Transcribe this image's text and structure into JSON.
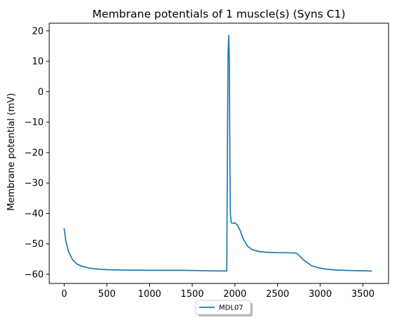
{
  "chart_data": {
    "type": "line",
    "title": "Membrane potentials of 1 muscle(s) (Syns C1)",
    "xlabel": "",
    "ylabel": "Membrane potential (mV)",
    "xlim": [
      -175,
      3800
    ],
    "ylim": [
      -63,
      22.5
    ],
    "xticks": [
      0,
      500,
      1000,
      1500,
      2000,
      2500,
      3000,
      3500
    ],
    "yticks": [
      20,
      10,
      0,
      -10,
      -20,
      -30,
      -40,
      -50,
      -60
    ],
    "ytick_labels": [
      "20",
      "10",
      "0",
      "−10",
      "−20",
      "−30",
      "−40",
      "−50",
      "−60"
    ],
    "grid": false,
    "legend_position": "bottom-center",
    "series": [
      {
        "name": "MDL07",
        "color": "#1f77b4",
        "x": [
          0,
          20,
          50,
          100,
          150,
          200,
          300,
          400,
          500,
          700,
          1000,
          1400,
          1600,
          1800,
          1905,
          1912,
          1920,
          1928,
          1935,
          1938,
          1942,
          1947,
          1955,
          1965,
          1980,
          2000,
          2030,
          2060,
          2100,
          2150,
          2200,
          2300,
          2400,
          2500,
          2600,
          2700,
          2730,
          2800,
          2900,
          3000,
          3100,
          3200,
          3400,
          3600
        ],
        "y": [
          -45,
          -49,
          -52.5,
          -55.3,
          -56.6,
          -57.3,
          -58.0,
          -58.3,
          -58.5,
          -58.6,
          -58.7,
          -58.7,
          -58.8,
          -58.9,
          -58.9,
          -20,
          12,
          18.5,
          10,
          -5,
          -25,
          -40,
          -42.8,
          -43.3,
          -43.2,
          -43.1,
          -43.8,
          -45.5,
          -48.5,
          -50.8,
          -51.9,
          -52.6,
          -52.8,
          -52.9,
          -52.9,
          -53.0,
          -53.2,
          -55.2,
          -57.2,
          -58.0,
          -58.4,
          -58.6,
          -58.8,
          -58.9
        ]
      }
    ]
  }
}
